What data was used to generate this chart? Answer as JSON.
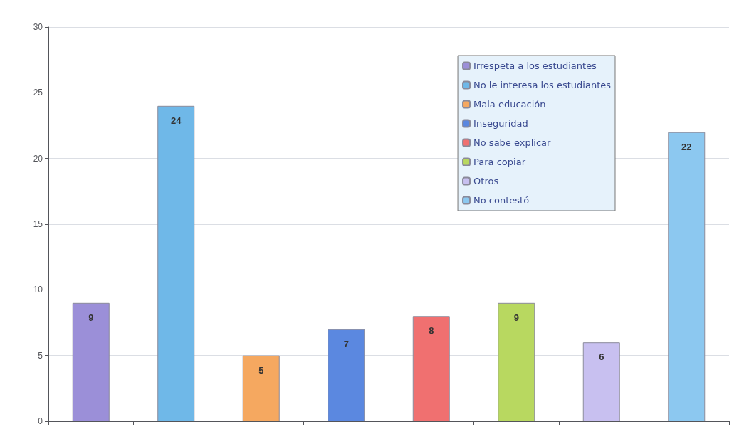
{
  "chart_data": {
    "type": "bar",
    "categories": [
      null,
      null,
      null,
      null,
      null,
      null,
      null,
      null
    ],
    "series": [
      {
        "name": "Irrespeta a los estudiantes",
        "color": "#9b8fd8",
        "values": [
          9,
          null,
          null,
          null,
          null,
          null,
          null,
          null
        ]
      },
      {
        "name": "No le interesa los estudiantes",
        "color": "#6fb8e8",
        "values": [
          null,
          24,
          null,
          null,
          null,
          null,
          null,
          null
        ]
      },
      {
        "name": "Mala educación",
        "color": "#f5a860",
        "values": [
          null,
          null,
          5,
          null,
          null,
          null,
          null,
          null
        ]
      },
      {
        "name": "Inseguridad",
        "color": "#5b88e0",
        "values": [
          null,
          null,
          null,
          7,
          null,
          null,
          null,
          null
        ]
      },
      {
        "name": "No sabe explicar",
        "color": "#f07070",
        "values": [
          null,
          null,
          null,
          null,
          8,
          null,
          null,
          null
        ]
      },
      {
        "name": "Para copiar",
        "color": "#b8d860",
        "values": [
          null,
          null,
          null,
          null,
          null,
          9,
          null,
          null
        ]
      },
      {
        "name": "Otros",
        "color": "#c8c0f0",
        "values": [
          null,
          null,
          null,
          null,
          null,
          null,
          6,
          null
        ]
      },
      {
        "name": "No contestó",
        "color": "#8cc8f0",
        "values": [
          null,
          null,
          null,
          null,
          null,
          null,
          null,
          22
        ]
      }
    ],
    "ylim": [
      0,
      30
    ],
    "yticks": [
      0,
      5,
      10,
      15,
      20,
      25,
      30
    ],
    "grid": "y",
    "legend": "top right",
    "data_labels": true
  }
}
